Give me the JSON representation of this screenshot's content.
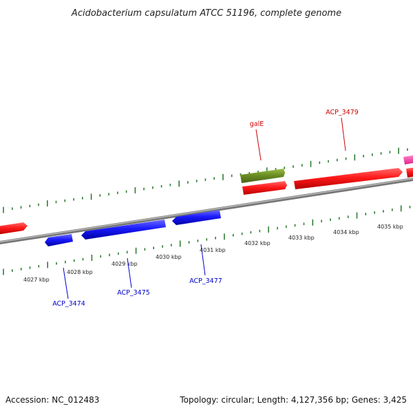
{
  "title": "Acidobacterium capsulatum ATCC 51196, complete genome",
  "footer": {
    "accession": "Accession: NC_012483",
    "topology": "Topology: circular; Length: 4,127,356 bp; Genes: 3,425"
  },
  "colors": {
    "forward_gene": "#ff1a1a",
    "reverse_gene": "#1a1aff",
    "galE_gene": "#6b8e23",
    "pink_gene": "#ff33aa",
    "backbone": "#888888",
    "tick": "#2e7d32",
    "label_red": "#cc0000",
    "label_blue": "#0000cc"
  },
  "ruler": {
    "unit": "kbp",
    "labels": [
      "4027 kbp",
      "4028 kbp",
      "4029 kbp",
      "4030 kbp",
      "4031 kbp",
      "4032 kbp",
      "4033 kbp",
      "4034 kbp",
      "4035 kbp"
    ]
  },
  "gene_labels": [
    {
      "name": "galE",
      "strand": "forward"
    },
    {
      "name": "ACP_3479",
      "strand": "forward"
    },
    {
      "name": "ACP_3474",
      "strand": "reverse"
    },
    {
      "name": "ACP_3475",
      "strand": "reverse"
    },
    {
      "name": "ACP_3477",
      "strand": "reverse"
    }
  ]
}
